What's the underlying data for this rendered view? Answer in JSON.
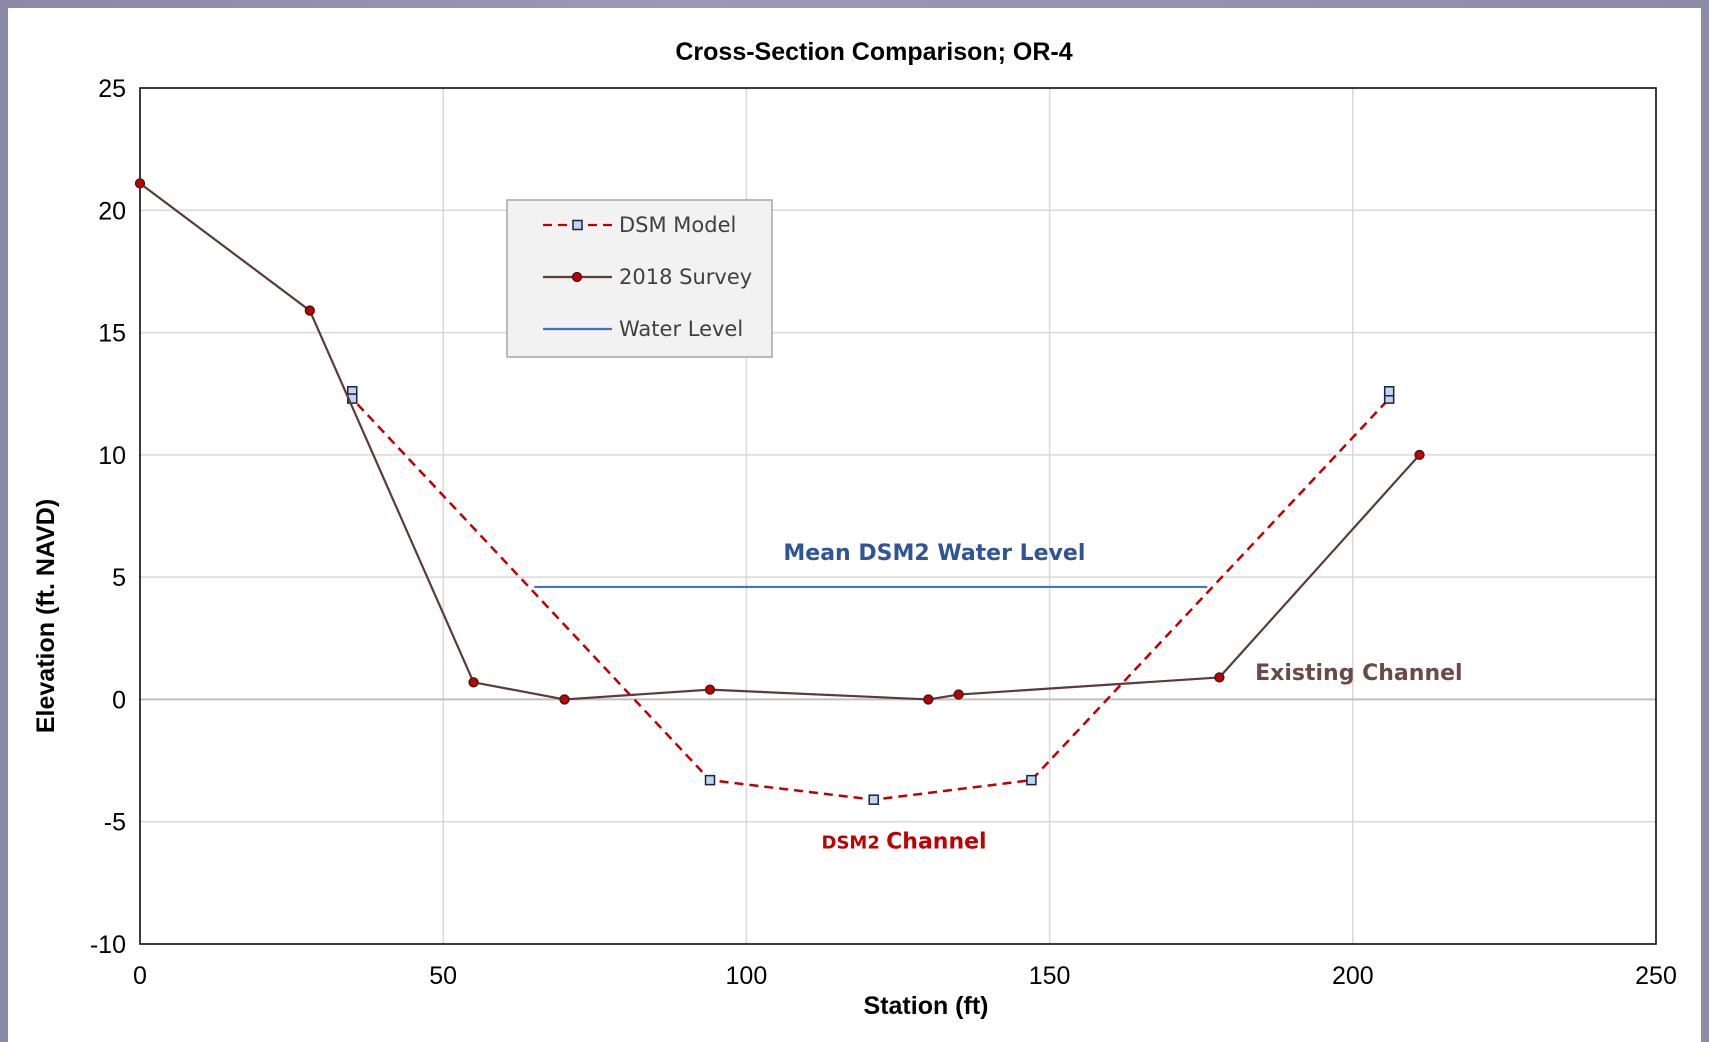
{
  "chart_data": {
    "type": "line",
    "title": "Cross-Section Comparison; OR-4",
    "xlabel": "Station (ft)",
    "ylabel": "Elevation (ft. NAVD)",
    "xlim": [
      0,
      250
    ],
    "ylim": [
      -10,
      25
    ],
    "xticks": [
      0,
      50,
      100,
      150,
      200,
      250
    ],
    "yticks": [
      -10,
      -5,
      0,
      5,
      10,
      15,
      20,
      25
    ],
    "grid": true,
    "legend_position": "upper-left",
    "series": [
      {
        "name": "DSM Model",
        "color": "#c00000",
        "style": "dashed",
        "marker": "square",
        "x": [
          35,
          35,
          94,
          121,
          147,
          206,
          206
        ],
        "y": [
          12.6,
          12.3,
          -3.3,
          -4.1,
          -3.3,
          12.3,
          12.6
        ]
      },
      {
        "name": "2018 Survey",
        "color": "#5a3a3a",
        "style": "solid",
        "marker": "circle",
        "x": [
          0,
          28,
          55,
          70,
          94,
          130,
          135,
          178,
          211
        ],
        "y": [
          21.1,
          15.9,
          0.7,
          0.0,
          0.4,
          0.0,
          0.2,
          0.9,
          10.0
        ]
      },
      {
        "name": "Water Level",
        "color": "#4472c4",
        "style": "solid",
        "marker": "none",
        "x": [
          65,
          176
        ],
        "y": [
          4.6,
          4.6
        ]
      }
    ],
    "annotations": [
      {
        "text": "Mean DSM2 Water Level",
        "x": 131,
        "y": 5.7,
        "color": "#2f5597"
      },
      {
        "text": "Existing Channel",
        "x": 201,
        "y": 0.8,
        "color": "#6b4a45"
      },
      {
        "text_small": "DSM2",
        "text": "Channel",
        "x": 126,
        "y": -6.1,
        "color": "#c00000"
      }
    ]
  }
}
